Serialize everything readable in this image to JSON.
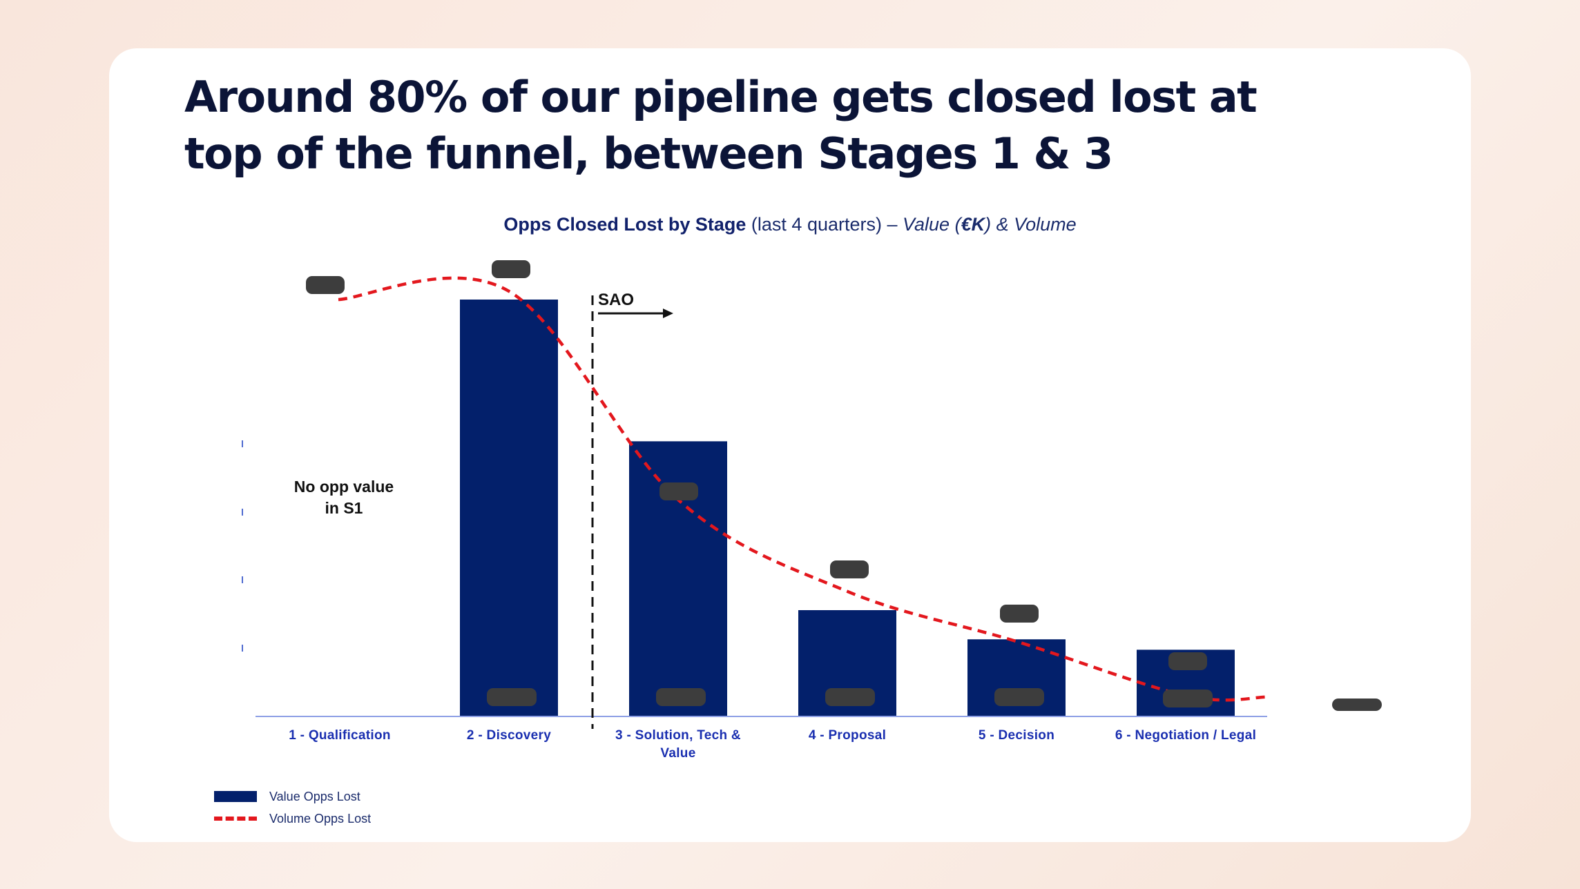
{
  "headline": "Around 80% of our pipeline gets closed lost at top of the funnel, between Stages 1 & 3",
  "chart_title": {
    "bold": "Opps Closed Lost by Stage",
    "normal": " (last 4 quarters) – ",
    "italic_pre": "Value (",
    "italic_bold": "€K",
    "italic_post": ") & Volume"
  },
  "colors": {
    "bar": "#03206b",
    "line": "#e3171d",
    "axis_text": "#1a2fb0",
    "redacted": "#3d3d3d"
  },
  "chart_data": {
    "type": "bar",
    "title": "Opps Closed Lost by Stage (last 4 quarters) – Value (€K) & Volume",
    "categories": [
      "1 - Qualification",
      "2 - Discovery",
      "3 - Solution, Tech & Value",
      "4 - Proposal",
      "5 - Decision",
      "6 - Negotiation / Legal"
    ],
    "series": [
      {
        "name": "Value Opps Lost",
        "type": "bar",
        "values": [
          0,
          100,
          66,
          25.5,
          18.5,
          16
        ]
      },
      {
        "name": "Volume Opps Lost",
        "type": "line",
        "style": "dashed",
        "values": [
          100,
          102,
          52,
          30,
          18,
          5
        ]
      }
    ],
    "ylim": [
      0,
      100
    ],
    "xlabel": "",
    "ylabel": "",
    "annotations": [
      {
        "text": "No opp value in S1",
        "category": "1 - Qualification"
      },
      {
        "text": "SAO",
        "between": [
          "2 - Discovery",
          "3 - Solution, Tech & Value"
        ]
      }
    ],
    "legend": {
      "position": "bottom-left",
      "entries": [
        "Value Opps Lost",
        "Volume Opps Lost"
      ]
    }
  }
}
